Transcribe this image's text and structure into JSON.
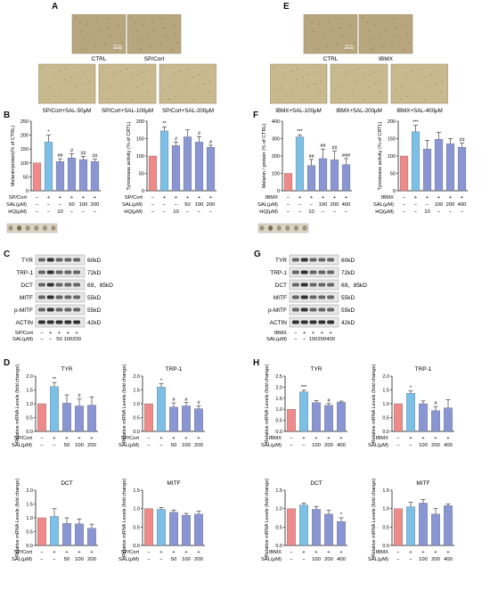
{
  "panels": {
    "A": {
      "letter": "A",
      "micrographs_row1": [
        "CTRL",
        "SP/Cort"
      ],
      "micrographs_row2": [
        "SP/Cort+SAL-50μM",
        "SP/Cort+SAL-100μM",
        "SP/Cort+SAL-200μM"
      ],
      "scale_bar": "100 μm"
    },
    "E": {
      "letter": "E",
      "micrographs_row1": [
        "CTRL",
        "IBMX"
      ],
      "micrographs_row2": [
        "IBMX+SAL-100μM",
        "IBMX+SAL-200μM",
        "IBMX+SAL-400μM"
      ],
      "scale_bar": "100 μm"
    },
    "B": {
      "letter": "B"
    },
    "F": {
      "letter": "F"
    },
    "C": {
      "letter": "C"
    },
    "G": {
      "letter": "G"
    },
    "D": {
      "letter": "D"
    },
    "H": {
      "letter": "H"
    }
  },
  "tables": {
    "B": {
      "rows": [
        {
          "label": "SP/Cort",
          "cells": [
            "−",
            "+",
            "+",
            "+",
            "+",
            "+"
          ]
        },
        {
          "label": "SAL(μM)",
          "cells": [
            "−",
            "−",
            "−",
            "50",
            "100",
            "200"
          ]
        },
        {
          "label": "HQ(μM)",
          "cells": [
            "−",
            "−",
            "10",
            "−",
            "−",
            "−"
          ]
        }
      ]
    },
    "F": {
      "rows": [
        {
          "label": "IBMX",
          "cells": [
            "−",
            "+",
            "+",
            "+",
            "+",
            "+"
          ]
        },
        {
          "label": "SAL(μM)",
          "cells": [
            "−",
            "−",
            "−",
            "100",
            "200",
            "400"
          ]
        },
        {
          "label": "HQ(μM)",
          "cells": [
            "−",
            "−",
            "10",
            "−",
            "−",
            "−"
          ]
        }
      ]
    },
    "C": {
      "rows": [
        {
          "label": "SP/Cort",
          "cells": [
            "−",
            "+",
            "+",
            "+",
            "+"
          ]
        },
        {
          "label": "SAL(μM)",
          "cells": [
            "−",
            "−",
            "50",
            "100",
            "200"
          ]
        }
      ]
    },
    "G": {
      "rows": [
        {
          "label": "IBMX",
          "cells": [
            "−",
            "+",
            "+",
            "+",
            "+"
          ]
        },
        {
          "label": "SAL(μM)",
          "cells": [
            "−",
            "−",
            "100",
            "200",
            "400"
          ]
        }
      ]
    },
    "D": {
      "rows": [
        {
          "label": "SP/Cort",
          "cells": [
            "−",
            "+",
            "+",
            "+",
            "+"
          ]
        },
        {
          "label": "SAL(μM)",
          "cells": [
            "−",
            "−",
            "50",
            "100",
            "200"
          ]
        }
      ]
    },
    "H": {
      "rows": [
        {
          "label": "IBMX",
          "cells": [
            "−",
            "+",
            "+",
            "+",
            "+"
          ]
        },
        {
          "label": "SAL(μM)",
          "cells": [
            "−",
            "−",
            "100",
            "200",
            "400"
          ]
        }
      ]
    }
  },
  "western_blots": {
    "C": [
      {
        "protein": "TYR",
        "size": "60kD"
      },
      {
        "protein": "TRP-1",
        "size": "72kD"
      },
      {
        "protein": "DCT",
        "size": "69、85kD"
      },
      {
        "protein": "MITF",
        "size": "55kD"
      },
      {
        "protein": "p-MITF",
        "size": "55kD"
      },
      {
        "protein": "ACTIN",
        "size": "42kD"
      }
    ],
    "G": [
      {
        "protein": "TYR",
        "size": "60kD"
      },
      {
        "protein": "TRP-1",
        "size": "72kD"
      },
      {
        "protein": "DCT",
        "size": "69、85kD"
      },
      {
        "protein": "MITF",
        "size": "55kD"
      },
      {
        "protein": "p-MITF",
        "size": "55kD"
      },
      {
        "protein": "ACTIN",
        "size": "42kD"
      }
    ]
  },
  "colors": {
    "control_bar": "#f08a8a",
    "model_bar": "#7cc0e8",
    "treatment_bar": "#8a96d4",
    "micrograph_bg": "#b8a77e",
    "micrograph_tint": "#c9b98e",
    "tube_pellet": "#7a6a4a"
  },
  "chart_data": [
    {
      "id": "B1",
      "type": "bar",
      "title": "",
      "xlabel": "",
      "ylabel": "Melanin/protein(% of CTRL)",
      "ylim": [
        0,
        250
      ],
      "yticks": [
        "0",
        "50",
        "100",
        "150",
        "200",
        "250"
      ],
      "values": [
        100,
        175,
        105,
        118,
        112,
        105
      ],
      "errors": [
        0,
        25,
        10,
        15,
        12,
        8
      ],
      "marks": [
        "",
        "*",
        "##",
        "#",
        "##",
        "##"
      ]
    },
    {
      "id": "B2",
      "type": "bar",
      "title": "",
      "xlabel": "",
      "ylabel": "Tyrosinase activity (% of CRTL)",
      "ylim": [
        0,
        200
      ],
      "yticks": [
        "0",
        "50",
        "100",
        "150",
        "200"
      ],
      "values": [
        100,
        172,
        130,
        155,
        140,
        125
      ],
      "errors": [
        0,
        12,
        10,
        20,
        15,
        6
      ],
      "marks": [
        "",
        "**",
        "#",
        "",
        "#",
        "#"
      ]
    },
    {
      "id": "F1",
      "type": "bar",
      "title": "",
      "xlabel": "",
      "ylabel": "Melanin / protein (% of CTRL)",
      "ylim": [
        0,
        400
      ],
      "yticks": [
        "0",
        "100",
        "200",
        "300",
        "400"
      ],
      "values": [
        100,
        310,
        145,
        185,
        178,
        150
      ],
      "errors": [
        0,
        12,
        35,
        55,
        50,
        35
      ],
      "marks": [
        "",
        "***",
        "##",
        "##",
        "##",
        "###"
      ]
    },
    {
      "id": "F2",
      "type": "bar",
      "title": "",
      "xlabel": "",
      "ylabel": "Tyrosinase activity (% of CRTL)",
      "ylim": [
        0,
        200
      ],
      "yticks": [
        "0",
        "50",
        "100",
        "150",
        "200"
      ],
      "values": [
        100,
        170,
        120,
        148,
        135,
        125
      ],
      "errors": [
        0,
        18,
        25,
        20,
        15,
        12
      ],
      "marks": [
        "",
        "***",
        "",
        "",
        "",
        "##"
      ]
    },
    {
      "id": "D1",
      "type": "bar",
      "title": "TYR",
      "xlabel": "",
      "ylabel": "Relative mRNA Levels (fold change)",
      "ylim": [
        0,
        2.0
      ],
      "yticks": [
        "0.0",
        "0.5",
        "1.0",
        "1.5",
        "2.0"
      ],
      "values": [
        1.0,
        1.62,
        1.02,
        0.92,
        0.95
      ],
      "errors": [
        0,
        0.15,
        0.3,
        0.25,
        0.3
      ],
      "marks": [
        "",
        "**",
        "",
        "#",
        ""
      ]
    },
    {
      "id": "D2",
      "type": "bar",
      "title": "TRP-1",
      "xlabel": "",
      "ylabel": "Relative mRNA Levels (fold change)",
      "ylim": [
        0,
        2.0
      ],
      "yticks": [
        "0.0",
        "0.5",
        "1.0",
        "1.5",
        "2.0"
      ],
      "values": [
        1.0,
        1.6,
        0.88,
        0.92,
        0.82
      ],
      "errors": [
        0,
        0.12,
        0.15,
        0.12,
        0.1
      ],
      "marks": [
        "",
        "*",
        "#",
        "#",
        "#"
      ]
    },
    {
      "id": "D3",
      "type": "bar",
      "title": "DCT",
      "xlabel": "",
      "ylabel": "Relative mRNA Levels (fold change)",
      "ylim": [
        0,
        2.0
      ],
      "yticks": [
        "0.0",
        "0.5",
        "1.0",
        "1.5",
        "2.0"
      ],
      "values": [
        1.0,
        1.05,
        0.8,
        0.78,
        0.62
      ],
      "errors": [
        0,
        0.28,
        0.2,
        0.18,
        0.15
      ],
      "marks": [
        "",
        "",
        "",
        "",
        ""
      ]
    },
    {
      "id": "D4",
      "type": "bar",
      "title": "MITF",
      "xlabel": "",
      "ylabel": "Relative mRNA Levels (fold change)",
      "ylim": [
        0,
        1.5
      ],
      "yticks": [
        "0.0",
        "0.5",
        "1.0",
        "1.5"
      ],
      "values": [
        1.0,
        0.98,
        0.9,
        0.82,
        0.85
      ],
      "errors": [
        0,
        0.05,
        0.06,
        0.05,
        0.08
      ],
      "marks": [
        "",
        "",
        "",
        "",
        ""
      ]
    },
    {
      "id": "H1",
      "type": "bar",
      "title": "TYR",
      "xlabel": "",
      "ylabel": "Relative mRNA Levels (fold change)",
      "ylim": [
        0,
        2.5
      ],
      "yticks": [
        "0.0",
        "0.5",
        "1.0",
        "1.5",
        "2.0",
        "2.5"
      ],
      "values": [
        1.0,
        1.78,
        1.3,
        1.18,
        1.32
      ],
      "errors": [
        0,
        0.08,
        0.1,
        0.08,
        0.05
      ],
      "marks": [
        "",
        "***",
        "",
        "#",
        ""
      ]
    },
    {
      "id": "H2",
      "type": "bar",
      "title": "TRP-1",
      "xlabel": "",
      "ylabel": "Relative mRNA Levels (fold change)",
      "ylim": [
        0,
        2.0
      ],
      "yticks": [
        "0.0",
        "0.5",
        "1.0",
        "1.5",
        "2.0"
      ],
      "values": [
        1.0,
        1.38,
        1.0,
        0.75,
        0.85
      ],
      "errors": [
        0,
        0.08,
        0.1,
        0.15,
        0.3
      ],
      "marks": [
        "",
        "*",
        "",
        "#",
        ""
      ]
    },
    {
      "id": "H3",
      "type": "bar",
      "title": "DCT",
      "xlabel": "",
      "ylabel": "Relative mRNA Levels (fold change)",
      "ylim": [
        0,
        1.5
      ],
      "yticks": [
        "0.0",
        "0.5",
        "1.0",
        "1.5"
      ],
      "values": [
        1.0,
        1.1,
        0.98,
        0.85,
        0.65
      ],
      "errors": [
        0,
        0.05,
        0.08,
        0.1,
        0.1
      ],
      "marks": [
        "",
        "",
        "",
        "",
        "*"
      ]
    },
    {
      "id": "H4",
      "type": "bar",
      "title": "MITF",
      "xlabel": "",
      "ylabel": "Relative mRNA Levels (fold change)",
      "ylim": [
        0,
        1.5
      ],
      "yticks": [
        "0.0",
        "0.5",
        "1.0",
        "1.5"
      ],
      "values": [
        1.0,
        1.05,
        1.15,
        0.85,
        1.08
      ],
      "errors": [
        0,
        0.12,
        0.1,
        0.15,
        0.05
      ],
      "marks": [
        "",
        "",
        "",
        "",
        ""
      ]
    }
  ]
}
